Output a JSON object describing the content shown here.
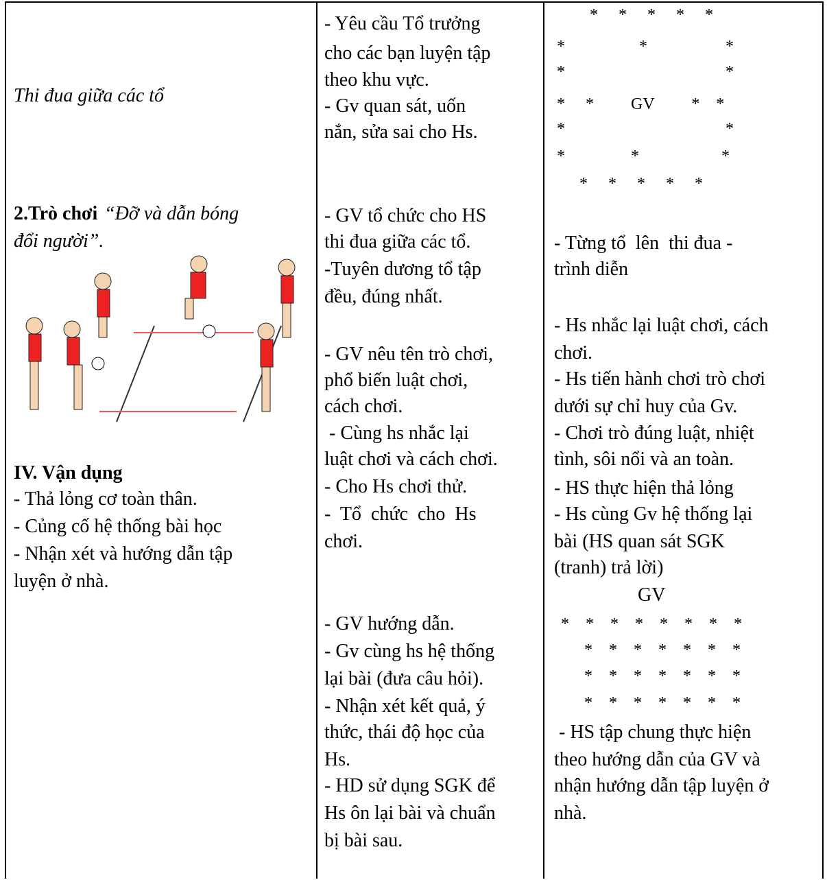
{
  "col1": {
    "activity": "Thi đua giữa các tổ",
    "game_label": "2.Trò chơi",
    "game_name_1": "“Đỡ và dẫn bóng",
    "game_name_2": "đổi người”.",
    "section": "IV. Vận dụng",
    "items": [
      "- Thả lỏng cơ toàn thân.",
      "- Củng cố hệ thống bài học",
      "- Nhận xét và hướng dẫn tập",
      "luyện ở nhà."
    ]
  },
  "col2": {
    "lines": [
      "- Yêu cầu Tổ trưởng",
      "cho các bạn luyện tập",
      "theo khu vực.",
      "- Gv quan sát, uốn",
      "nắn, sửa sai cho Hs.",
      "- GV tổ chức cho HS",
      "thi đua giữa các tổ.",
      "-Tuyên dương tổ tập",
      "đều, đúng nhất.",
      "- GV nêu tên trò chơi,",
      "phổ biến luật chơi,",
      "cách chơi.",
      " - Cùng hs nhắc lại",
      "luật chơi và cách chơi.",
      "- Cho Hs chơi thử.",
      "-  Tổ  chức  cho  Hs",
      "chơi.",
      "- GV hướng dẫn.",
      "- Gv cùng hs hệ thống",
      "lại bài (đưa câu hỏi).",
      "- Nhận xét kết quả, ý",
      "thức, thái độ học của",
      "Hs.",
      "- HD sử dụng SGK để",
      "Hs ôn lại bài và chuẩn",
      "bị bài sau."
    ]
  },
  "col3": {
    "lines": [
      "*     *     *     *     *",
      "*                  *                   *",
      "*                                       *",
      "*     *         GV         *    *",
      "*                                       *",
      "*                *                    *",
      "*     *     *     *     *",
      "- Từng tổ  lên  thi đua -",
      "trình diễn",
      "- Hs nhắc lại luật chơi, cách",
      "chơi.",
      "- Hs tiến hành chơi trò chơi",
      "dưới sự chỉ huy của Gv.",
      "- Chơi trò đúng luật, nhiệt",
      "tình, sôi nổi và an toàn.",
      "- HS thực hiện thả lỏng",
      "- Hs cùng Gv hệ thống lại",
      "bài (HS quan sát SGK",
      "(tranh) trả lời)",
      "GV",
      "*    *    *    *    *    *    *    *",
      "*    *    *    *    *    *    *",
      "*    *    *    *    *    *    *",
      "*    *    *    *    *    *    *",
      " - HS tập chung thực hiện",
      "theo hướng dẫn của GV và",
      "nhận hướng dẫn tập luyện ở",
      "nhà."
    ]
  }
}
